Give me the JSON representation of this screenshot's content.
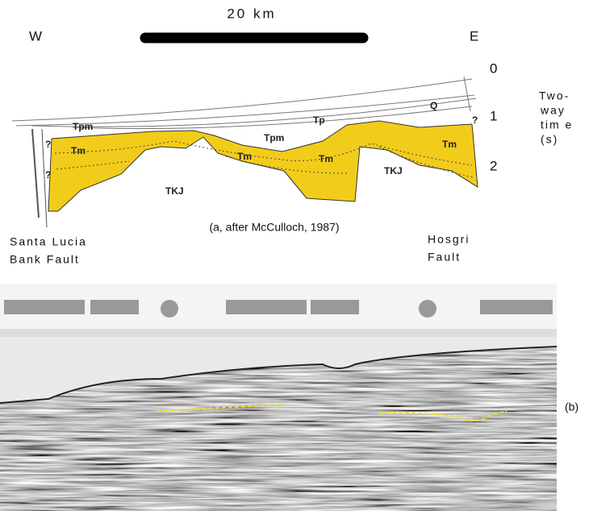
{
  "scale_bar": "20 km",
  "compass": {
    "west": "W",
    "east": "E"
  },
  "time_axis": {
    "ticks": [
      "0",
      "1",
      "2"
    ],
    "label": [
      "Two-",
      "way",
      "tim e",
      "(s)"
    ]
  },
  "units": {
    "q": "Q",
    "tp": "Tp",
    "tpm": [
      "Tpm",
      "Tpm"
    ],
    "tm": [
      "Tm",
      "Tm",
      "Tm",
      "Tm"
    ],
    "tkj": [
      "TKJ",
      "TKJ"
    ],
    "unknown": [
      "?",
      "?",
      "?"
    ]
  },
  "caption_a": "(a, after McCulloch, 1987)",
  "faults": {
    "santa_lucia": [
      "Santa Lucia",
      "Bank Fault"
    ],
    "hosgri": [
      "Hosgri",
      "Fault"
    ]
  },
  "caption_b": "(b)"
}
